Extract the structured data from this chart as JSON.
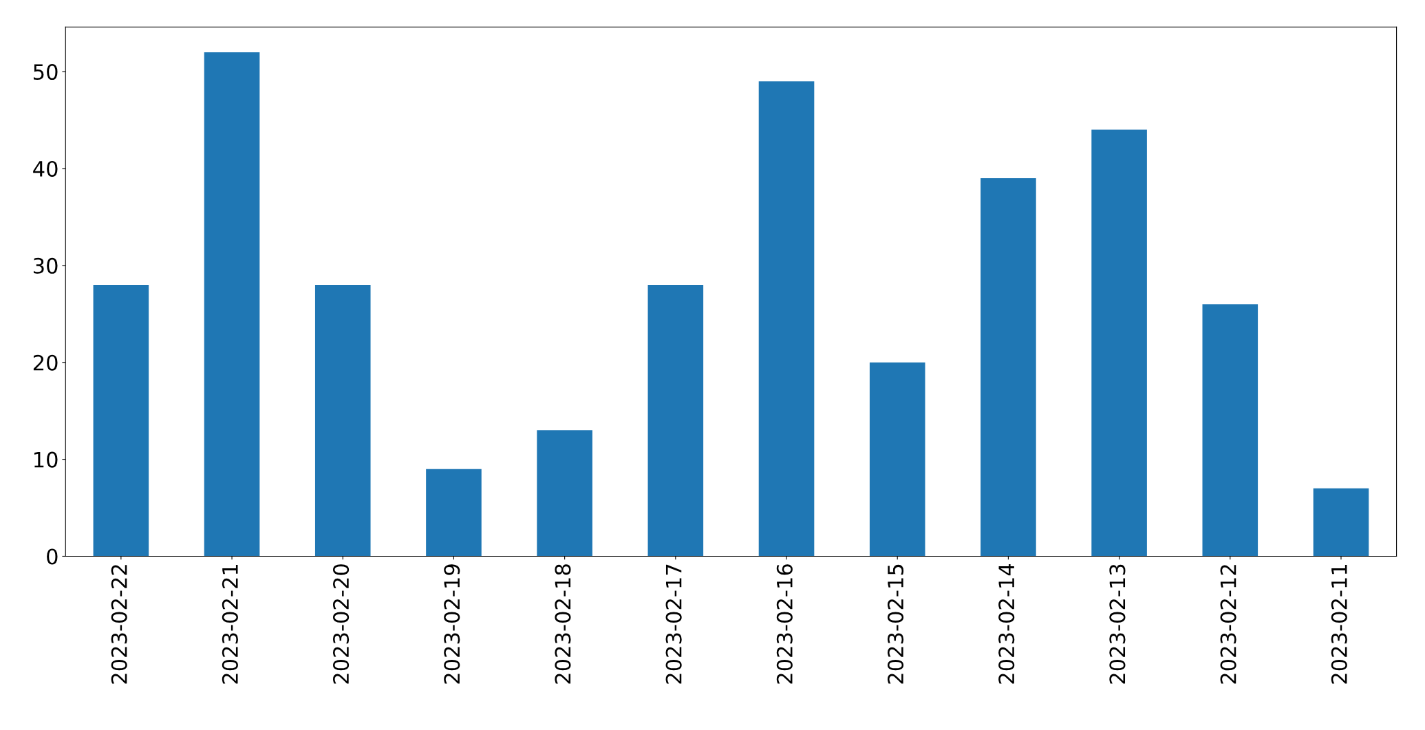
{
  "chart_data": {
    "type": "bar",
    "categories": [
      "2023-02-22",
      "2023-02-21",
      "2023-02-20",
      "2023-02-19",
      "2023-02-18",
      "2023-02-17",
      "2023-02-16",
      "2023-02-15",
      "2023-02-14",
      "2023-02-13",
      "2023-02-12",
      "2023-02-11"
    ],
    "values": [
      28,
      52,
      28,
      9,
      13,
      28,
      49,
      20,
      39,
      44,
      26,
      7
    ],
    "color": "#1f77b4",
    "ylim": [
      0,
      54.6
    ],
    "yticks": [
      0,
      10,
      20,
      30,
      40,
      50
    ],
    "grid": false
  }
}
